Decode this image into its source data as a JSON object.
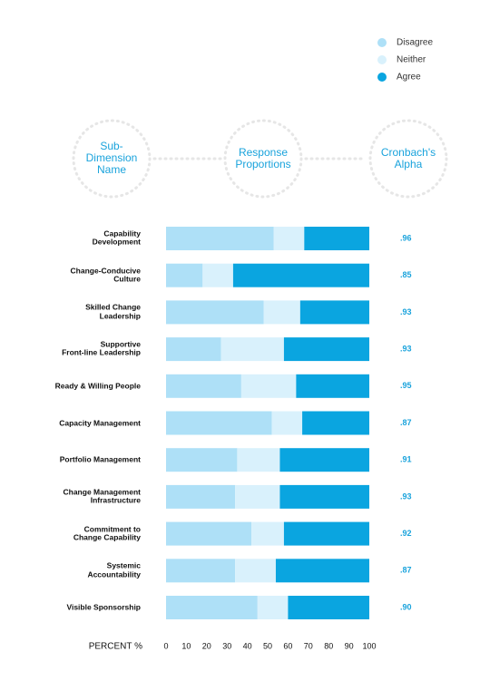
{
  "chart_data": {
    "type": "stacked-bar-horizontal",
    "headers": [
      "Sub-\nDimension\nName",
      "Response\nProportions",
      "Cronbach's\nAlpha"
    ],
    "categories": [
      "Capability\nDevelopment",
      "Change-Conducive\nCulture",
      "Skilled Change\nLeadership",
      "Supportive\nFront-line Leadership",
      "Ready & Willing People",
      "Capacity Management",
      "Portfolio Management",
      "Change Management\nInfrastructure",
      "Commitment to\nChange Capability",
      "Systemic\nAccountability",
      "Visible Sponsorship"
    ],
    "series": [
      {
        "name": "Disagree",
        "color": "#aee0f7",
        "values": [
          53,
          18,
          48,
          27,
          37,
          52,
          35,
          34,
          42,
          34,
          45
        ]
      },
      {
        "name": "Neither",
        "color": "#d9f1fc",
        "values": [
          15,
          15,
          18,
          31,
          27,
          15,
          21,
          22,
          16,
          20,
          15
        ]
      },
      {
        "name": "Agree",
        "color": "#0aa5e0",
        "values": [
          32,
          67,
          34,
          42,
          36,
          33,
          44,
          44,
          42,
          46,
          40
        ]
      }
    ],
    "alpha": {
      "color": "#1aa3dc",
      "values": [
        0.96,
        0.85,
        0.93,
        0.93,
        0.95,
        0.87,
        0.91,
        0.93,
        0.92,
        0.87,
        0.9
      ],
      "value_labels": [
        ".96",
        ".85",
        ".93",
        ".93",
        ".95",
        ".87",
        ".91",
        ".93",
        ".92",
        ".87",
        ".90"
      ]
    },
    "xlabel": "PERCENT %",
    "xlim": [
      0,
      100
    ],
    "xticks": [
      0,
      10,
      20,
      30,
      40,
      50,
      60,
      70,
      80,
      90,
      100
    ]
  }
}
